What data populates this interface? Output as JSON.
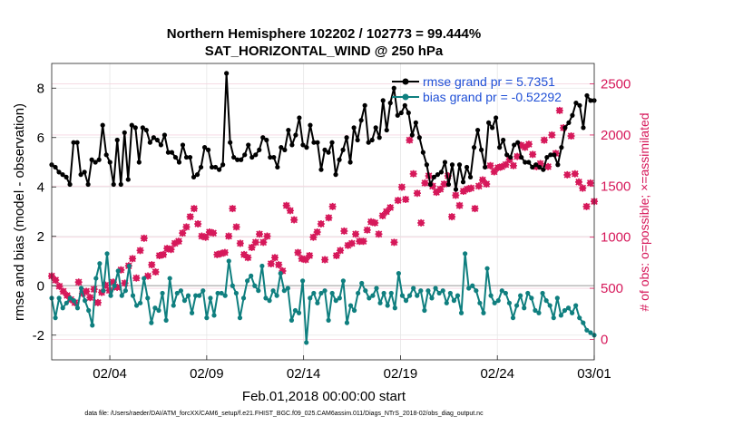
{
  "chart_data": {
    "type": "line",
    "title": "Northern Hemisphere 102202 / 102773 = 99.444%",
    "subtitle": "SAT_HORIZONTAL_WIND @ 250 hPa",
    "xlabel": "Feb.01,2018 00:00:00 start",
    "ylabel_left": "rmse and bias (model - observation)",
    "ylabel_right": "# of obs: o=possible; ×=assimilated",
    "footer": "data file: /Users/raeder/DAI/ATM_forcXX/CAM6_setup/f.e21.FHIST_BGC.f09_025.CAM6assim.011/Diags_NTrS_2018-02/obs_diag_output.nc",
    "x_ticks": [
      "02/04",
      "02/09",
      "02/14",
      "02/19",
      "02/24",
      "03/01"
    ],
    "x_tick_days": [
      3,
      8,
      13,
      18,
      23,
      28
    ],
    "xlim_days": [
      0,
      28
    ],
    "ylim_left": [
      -3,
      9
    ],
    "y_ticks_left": [
      "-2",
      "0",
      "2",
      "4",
      "6",
      "8"
    ],
    "ylim_right": [
      -200,
      2700
    ],
    "y_ticks_right": [
      "0",
      "500",
      "1000",
      "1500",
      "2000",
      "2500"
    ],
    "grid": true,
    "legend_position": "top-right",
    "colors": {
      "rmse": "#000000",
      "bias": "#0f7f7f",
      "obs": "#d6185a",
      "zero": "#bbbbbb",
      "legend_text": "#1f4fd6"
    },
    "series": [
      {
        "name": "rmse grand pr = 5.7351",
        "values": [
          4.9,
          4.8,
          4.6,
          4.5,
          4.4,
          4.1,
          5.8,
          5.8,
          4.5,
          4.6,
          4.1,
          5.1,
          5.0,
          5.1,
          6.5,
          5.3,
          5.0,
          4.1,
          5.9,
          4.1,
          6.2,
          4.3,
          6.5,
          6.4,
          5.0,
          6.4,
          6.3,
          5.8,
          6.0,
          5.9,
          5.7,
          6.1,
          5.4,
          5.4,
          5.2,
          5.0,
          5.7,
          5.2,
          5.2,
          4.4,
          4.5,
          4.8,
          5.6,
          5.5,
          4.8,
          4.8,
          4.7,
          4.9,
          8.6,
          5.8,
          5.2,
          5.1,
          5.1,
          5.3,
          5.7,
          5.2,
          5.3,
          5.5,
          6.0,
          5.9,
          5.2,
          5.2,
          4.8,
          5.6,
          5.5,
          6.3,
          5.7,
          6.1,
          6.8,
          5.7,
          5.6,
          6.5,
          5.8,
          5.8,
          4.7,
          5.5,
          5.4,
          5.8,
          4.5,
          5.1,
          5.5,
          6.0,
          5.0,
          6.4,
          5.9,
          6.7,
          7.3,
          5.8,
          5.9,
          6.4,
          6.0,
          7.5,
          6.3,
          7.4,
          8.0,
          6.9,
          7.0,
          7.3,
          7.0,
          6.1,
          6.6,
          6.0,
          5.4,
          4.9,
          4.1,
          4.4,
          4.5,
          4.6,
          5.0,
          4.1,
          4.9,
          3.9,
          4.9,
          4.2,
          4.8,
          4.4,
          5.6,
          6.3,
          5.5,
          4.8,
          6.6,
          6.4,
          6.8,
          5.6,
          5.9,
          5.3,
          5.2,
          5.7,
          5.8,
          5.2,
          5.0,
          5.0,
          4.8,
          4.9,
          4.8,
          4.7,
          5.2,
          5.3,
          5.3,
          4.9,
          5.6,
          6.4,
          6.6,
          6.9,
          7.4,
          7.3,
          6.4,
          7.7,
          7.5,
          7.5
        ]
      },
      {
        "name": "bias grand pr = -0.52292",
        "values": [
          -0.5,
          -1.3,
          -0.5,
          -0.9,
          -0.7,
          -0.5,
          -0.6,
          -0.9,
          -0.1,
          -0.6,
          -1.0,
          -1.6,
          0.3,
          0.9,
          -0.2,
          1.3,
          -0.4,
          0.0,
          0.6,
          -0.4,
          -0.2,
          0.8,
          -0.4,
          -0.8,
          -0.7,
          0.3,
          -0.5,
          -1.5,
          -0.9,
          -1.0,
          -0.3,
          -1.4,
          0.3,
          -0.8,
          -0.3,
          -0.2,
          -0.6,
          -0.4,
          -1.1,
          -0.4,
          -0.4,
          -0.2,
          -1.3,
          -0.5,
          -1.2,
          -0.3,
          -0.3,
          -0.4,
          1.0,
          0.0,
          -0.3,
          -1.3,
          -0.5,
          0.2,
          0.4,
          0.0,
          -0.2,
          0.8,
          -0.5,
          -0.6,
          -0.2,
          -0.4,
          0.5,
          -0.2,
          -0.1,
          -1.4,
          -1.0,
          -1.1,
          0.2,
          -2.3,
          -0.5,
          -0.3,
          -0.7,
          -0.3,
          -0.2,
          -1.4,
          -0.3,
          -0.6,
          -0.5,
          0.2,
          -1.5,
          -0.8,
          -1.0,
          -0.3,
          0.1,
          -0.2,
          -0.5,
          -0.4,
          -0.1,
          -0.7,
          -0.3,
          -0.8,
          -0.3,
          -0.9,
          0.5,
          -0.4,
          -0.6,
          -0.4,
          -0.1,
          -0.4,
          -0.2,
          -1.0,
          -0.2,
          -0.5,
          -0.1,
          -0.3,
          -0.2,
          -0.7,
          -0.3,
          -0.6,
          -0.4,
          -1.1,
          1.3,
          -0.1,
          0.0,
          -0.2,
          -0.7,
          -1.1,
          0.7,
          -0.4,
          -0.7,
          -0.6,
          -0.2,
          -0.3,
          -0.7,
          -1.3,
          -0.8,
          -0.4,
          -0.9,
          -0.3,
          -0.5,
          -1.0,
          -1.1,
          -0.3,
          -0.6,
          -0.8,
          -1.3,
          -0.5,
          -1.2,
          -1.0,
          -0.9,
          -1.1,
          -0.8,
          -1.3,
          -1.5,
          -1.8,
          -1.9,
          -2.0
        ]
      },
      {
        "name": "# of obs assimilated",
        "values": [
          620,
          580,
          520,
          470,
          430,
          390,
          360,
          560,
          450,
          470,
          410,
          490,
          360,
          460,
          530,
          480,
          560,
          510,
          680,
          550,
          720,
          790,
          600,
          870,
          990,
          620,
          730,
          660,
          820,
          830,
          890,
          880,
          940,
          960,
          1040,
          1100,
          1200,
          1280,
          1130,
          1010,
          1000,
          1050,
          1040,
          830,
          840,
          850,
          1010,
          1280,
          1100,
          940,
          830,
          800,
          900,
          950,
          1030,
          950,
          1010,
          740,
          800,
          730,
          670,
          1310,
          1260,
          1170,
          850,
          790,
          780,
          820,
          1000,
          1050,
          1130,
          780,
          1190,
          1300,
          820,
          870,
          1060,
          920,
          940,
          1030,
          960,
          960,
          1070,
          1150,
          1140,
          1030,
          1210,
          1250,
          1290,
          950,
          1360,
          1490,
          1370,
          1950,
          1620,
          1430,
          1140,
          1530,
          1600,
          1500,
          1440,
          1470,
          1520,
          1600,
          1200,
          1410,
          1310,
          1450,
          1470,
          1480,
          1280,
          1500,
          1560,
          1520,
          1700,
          1640,
          1680,
          1690,
          1710,
          1760,
          1700,
          1790,
          1900,
          1880,
          1910,
          1810,
          1690,
          1720,
          1950,
          1690,
          2000,
          1820,
          2240,
          2070,
          1610,
          1990,
          1620,
          1540,
          1480,
          1300,
          1530,
          1350
        ]
      },
      {
        "name": "# of obs possible",
        "values": [
          620,
          580,
          520,
          470,
          430,
          390,
          360,
          560,
          450,
          470,
          410,
          490,
          360,
          460,
          530,
          480,
          560,
          510,
          680,
          550,
          720,
          790,
          600,
          870,
          990,
          620,
          730,
          660,
          820,
          830,
          890,
          880,
          940,
          960,
          1040,
          1100,
          1200,
          1280,
          1130,
          1010,
          1000,
          1050,
          1040,
          830,
          840,
          850,
          1010,
          1280,
          1100,
          940,
          830,
          800,
          900,
          950,
          1030,
          950,
          1010,
          740,
          800,
          730,
          670,
          1310,
          1260,
          1170,
          850,
          790,
          780,
          820,
          1000,
          1050,
          1130,
          780,
          1190,
          1300,
          820,
          870,
          1060,
          920,
          940,
          1030,
          960,
          960,
          1070,
          1150,
          1140,
          1030,
          1210,
          1250,
          1290,
          950,
          1360,
          1490,
          1370,
          1950,
          1620,
          1430,
          1140,
          1530,
          1600,
          1500,
          1440,
          1470,
          1520,
          1600,
          1200,
          1410,
          1310,
          1450,
          1470,
          1480,
          1280,
          1500,
          1560,
          1520,
          1700,
          1640,
          1680,
          1690,
          1710,
          1760,
          1700,
          1790,
          1900,
          1880,
          1910,
          1810,
          1690,
          1720,
          1950,
          1690,
          2000,
          1820,
          2240,
          2070,
          1610,
          1990,
          1620,
          1540,
          1480,
          1300,
          1530,
          1350
        ]
      }
    ]
  }
}
